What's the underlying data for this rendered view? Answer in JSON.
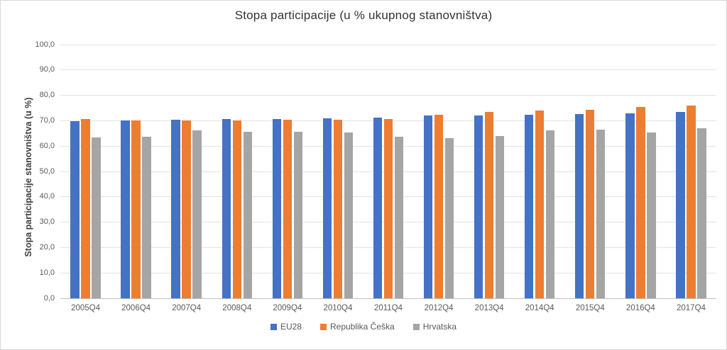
{
  "chart_data": {
    "type": "bar",
    "title": "Stopa participacije (u % ukupnog stanovništva)",
    "xlabel": "",
    "ylabel": "Stopa participacije stanovništva (u %)",
    "ylim": [
      0,
      100
    ],
    "ytick_step": 10,
    "ytick_labels": [
      "0,0",
      "10,0",
      "20,0",
      "30,0",
      "40,0",
      "50,0",
      "60,0",
      "70,0",
      "80,0",
      "90,0",
      "100,0"
    ],
    "grid": true,
    "legend_position": "bottom",
    "categories": [
      "2005Q4",
      "2006Q4",
      "2007Q4",
      "2008Q4",
      "2009Q4",
      "2010Q4",
      "2011Q4",
      "2012Q4",
      "2013Q4",
      "2014Q4",
      "2015Q4",
      "2016Q4",
      "2017Q4"
    ],
    "series": [
      {
        "name": "EU28",
        "color": "#4472C4",
        "values": [
          69.7,
          70.1,
          70.4,
          70.8,
          70.7,
          70.9,
          71.2,
          72.0,
          72.0,
          72.4,
          72.7,
          73.0,
          73.4
        ]
      },
      {
        "name": "Republika Češka",
        "color": "#ED7D31",
        "values": [
          70.8,
          70.2,
          70.0,
          70.0,
          70.3,
          70.4,
          70.7,
          72.3,
          73.4,
          74.0,
          74.3,
          75.5,
          76.1
        ]
      },
      {
        "name": "Hrvatska",
        "color": "#A5A5A5",
        "values": [
          63.4,
          63.8,
          66.2,
          65.7,
          65.6,
          65.3,
          63.8,
          63.0,
          64.1,
          66.3,
          66.6,
          65.5,
          67.1
        ]
      }
    ]
  }
}
